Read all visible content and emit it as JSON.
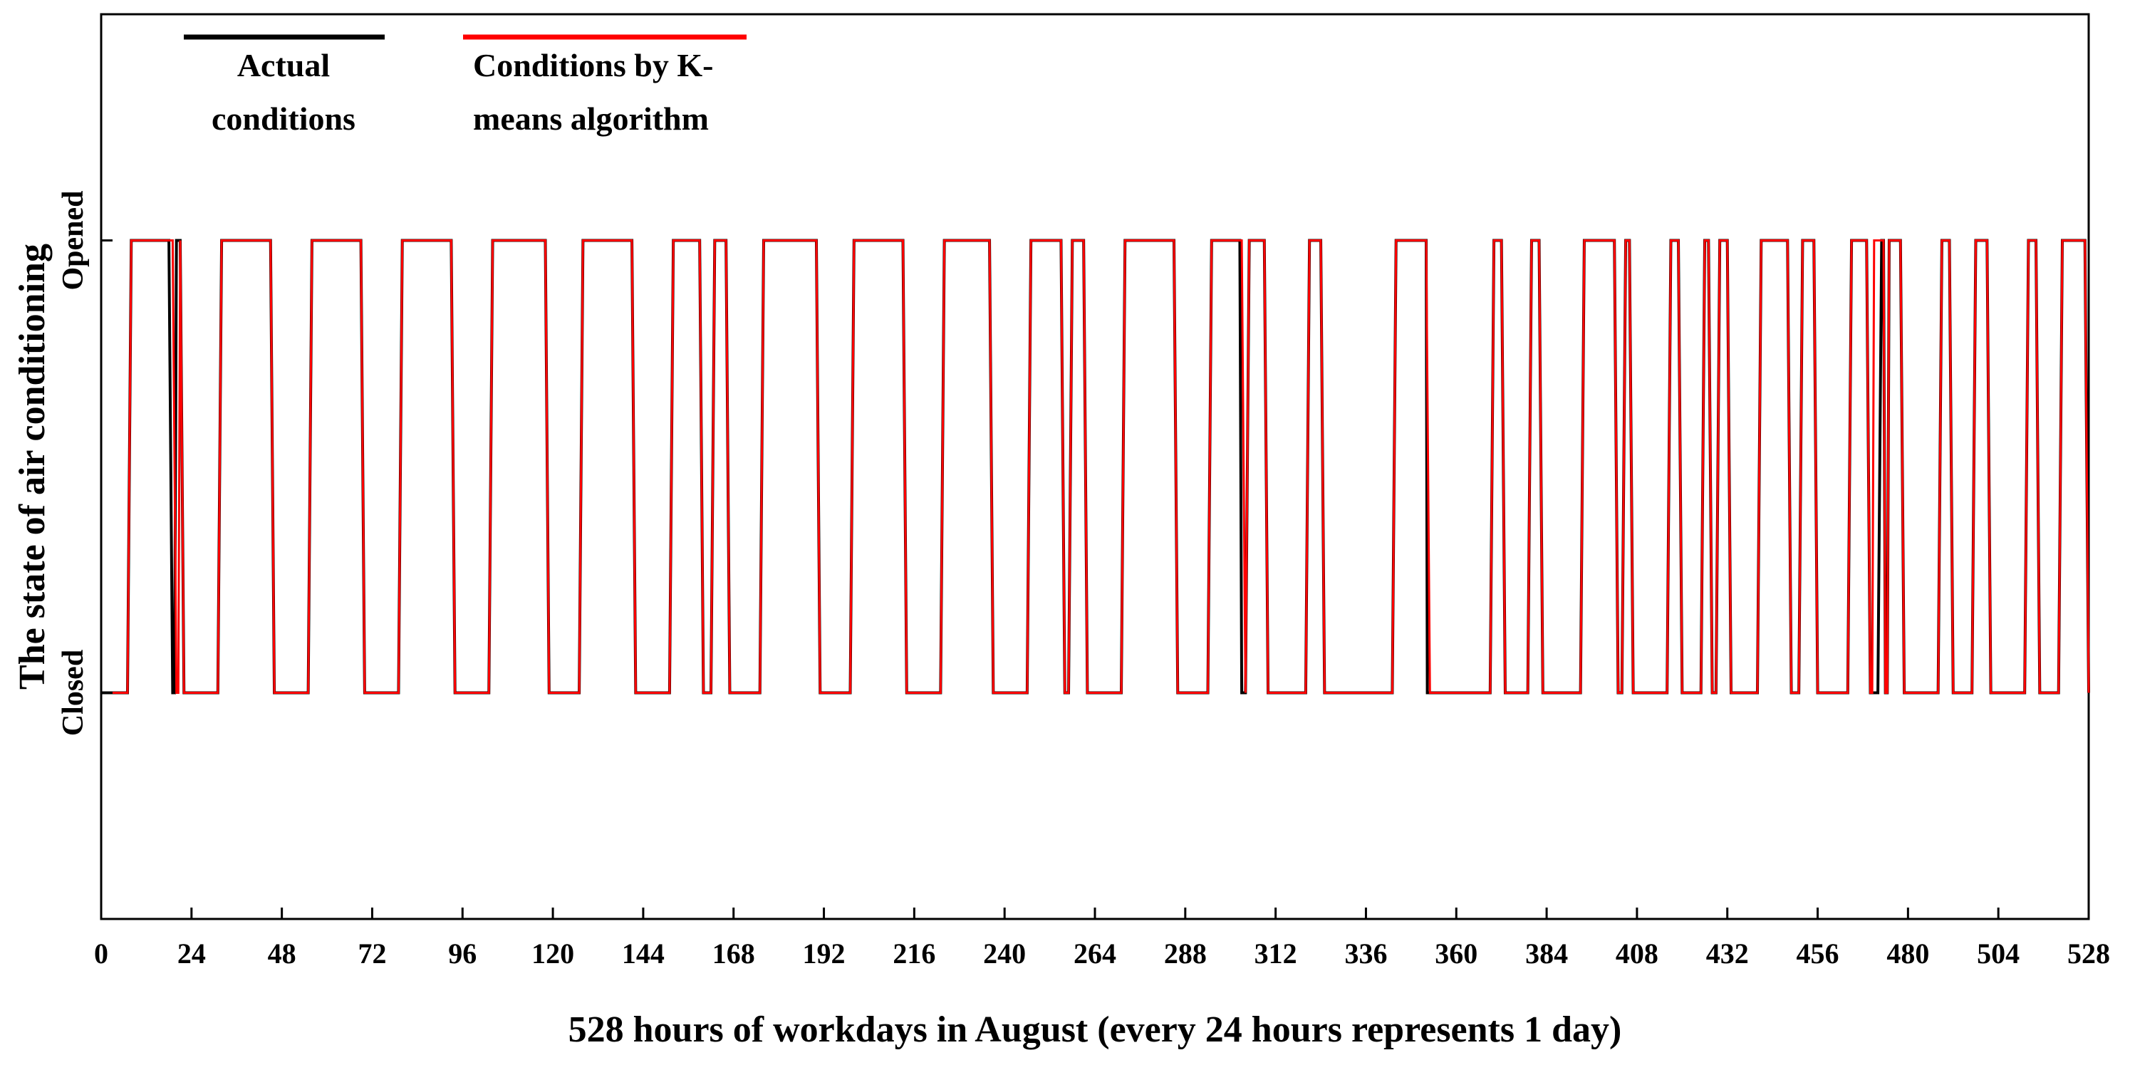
{
  "chart_data": {
    "type": "line",
    "title": "",
    "xlabel": "528 hours of workdays in August (every 24 hours represents 1 day)",
    "ylabel": "The state of air conditioning",
    "xlim": [
      0,
      528
    ],
    "ylim": [
      -0.5,
      1.5
    ],
    "xticks": [
      0,
      24,
      48,
      72,
      96,
      120,
      144,
      168,
      192,
      216,
      240,
      264,
      288,
      312,
      336,
      360,
      384,
      408,
      432,
      456,
      480,
      504,
      528
    ],
    "xtick_labels": [
      "0",
      "24",
      "48",
      "72",
      "96",
      "120",
      "144",
      "168",
      "192",
      "216",
      "240",
      "264",
      "288",
      "312",
      "336",
      "360",
      "384",
      "408",
      "432",
      "456",
      "480",
      "504",
      "528"
    ],
    "yticks": [
      0,
      1
    ],
    "ytick_labels": [
      "Closed",
      "Opened"
    ],
    "grid": false,
    "legend_position": "top-left",
    "series": [
      {
        "name": "Actual conditions",
        "color": "#000000",
        "segments": [
          [
            7,
            8,
            18,
            19
          ],
          [
            19.5,
            20,
            21,
            22
          ],
          [
            31,
            32,
            45,
            46
          ],
          [
            55,
            56,
            69,
            70
          ],
          [
            79,
            80,
            93,
            94
          ],
          [
            103,
            104,
            118,
            119
          ],
          [
            127,
            128,
            141,
            142
          ],
          [
            151,
            152,
            159,
            160
          ],
          [
            162,
            163,
            166,
            167
          ],
          [
            175,
            176,
            190,
            191
          ],
          [
            199,
            200,
            213,
            214
          ],
          [
            223,
            224,
            236,
            237
          ],
          [
            246,
            247,
            255,
            256
          ],
          [
            257,
            258,
            261,
            262
          ],
          [
            271,
            272,
            285,
            286
          ],
          [
            294,
            295,
            302.5,
            303
          ],
          [
            304,
            305,
            309,
            310
          ],
          [
            320,
            321,
            324,
            325
          ],
          [
            343,
            344,
            352,
            352.3
          ],
          [
            369,
            370,
            372,
            373
          ],
          [
            379,
            380,
            382,
            383
          ],
          [
            393,
            394,
            402,
            403
          ],
          [
            404,
            405,
            406,
            407
          ],
          [
            416,
            417,
            419,
            420
          ],
          [
            425,
            426,
            427,
            428
          ],
          [
            429,
            430,
            432,
            433
          ],
          [
            440,
            441,
            448,
            449
          ],
          [
            451,
            452,
            455,
            456
          ],
          [
            464,
            465,
            469,
            470
          ],
          [
            472,
            473,
            473.5,
            474
          ],
          [
            474.5,
            475,
            478,
            479
          ],
          [
            488,
            489,
            491,
            492
          ],
          [
            497,
            498,
            501,
            502
          ],
          [
            511,
            512,
            514,
            515
          ],
          [
            520,
            521,
            527,
            528
          ]
        ]
      },
      {
        "name": "Conditions by K-means algorithm",
        "color": "#ff0000",
        "segments": [
          [
            7,
            8,
            19,
            20
          ],
          [
            20.5,
            21,
            21,
            22
          ],
          [
            31,
            32,
            45,
            46
          ],
          [
            55,
            56,
            69,
            70
          ],
          [
            79,
            80,
            93,
            94
          ],
          [
            103,
            104,
            118,
            119
          ],
          [
            127,
            128,
            141,
            142
          ],
          [
            151,
            152,
            159,
            160
          ],
          [
            162,
            163,
            166,
            167
          ],
          [
            175,
            176,
            190,
            191
          ],
          [
            199,
            200,
            213,
            214
          ],
          [
            223,
            224,
            236,
            237
          ],
          [
            246,
            247,
            255,
            256
          ],
          [
            257,
            258,
            261,
            262
          ],
          [
            271,
            272,
            285,
            286
          ],
          [
            294,
            295,
            303,
            304
          ],
          [
            304,
            305,
            309,
            310
          ],
          [
            320,
            321,
            324,
            325
          ],
          [
            343,
            344,
            352,
            353
          ],
          [
            369,
            370,
            372,
            373
          ],
          [
            379,
            380,
            382,
            383
          ],
          [
            393,
            394,
            402,
            403
          ],
          [
            404,
            405,
            406,
            407
          ],
          [
            416,
            417,
            419,
            420
          ],
          [
            425,
            426,
            427,
            428
          ],
          [
            429,
            430,
            432,
            433
          ],
          [
            440,
            441,
            448,
            449
          ],
          [
            451,
            452,
            455,
            456
          ],
          [
            464,
            465,
            469,
            470
          ],
          [
            470.5,
            471,
            473.5,
            474
          ],
          [
            474.5,
            475,
            478,
            479
          ],
          [
            488,
            489,
            491,
            492
          ],
          [
            497,
            498,
            501,
            502
          ],
          [
            511,
            512,
            514,
            515
          ],
          [
            520,
            521,
            527,
            528
          ]
        ]
      }
    ]
  },
  "legend": {
    "items": [
      {
        "label_line1": "Actual",
        "label_line2": "conditions",
        "color": "#000000"
      },
      {
        "label_line1": "Conditions by K-",
        "label_line2": "means algorithm",
        "color": "#ff0000"
      }
    ]
  }
}
